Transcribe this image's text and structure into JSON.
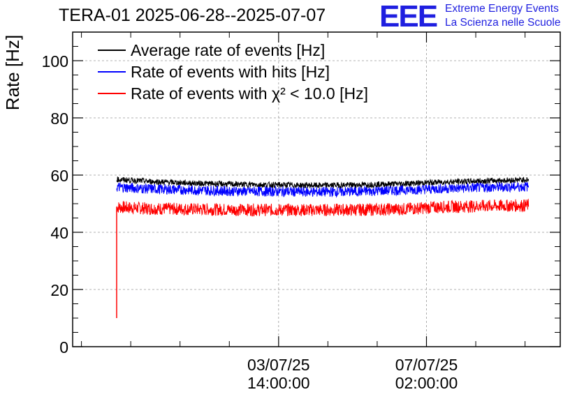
{
  "header": {
    "title": "TERA-01 2025-06-28--2025-07-07",
    "logo_text": "EEE",
    "org_line1": "Extreme Energy Events",
    "org_line2": "La Scienza nelle Scuole"
  },
  "chart_data": {
    "type": "line",
    "title": "TERA-01 2025-06-28--2025-07-07",
    "xlabel": "",
    "ylabel": "Rate [Hz]",
    "ylim": [
      0,
      110
    ],
    "yticks": [
      0,
      20,
      40,
      60,
      80,
      100
    ],
    "xlim": [
      "2025-06-28 17:00:00",
      "2025-07-10 06:00:00"
    ],
    "xticks": [
      {
        "date": "03/07/25",
        "time": "14:00:00",
        "value": "2025-07-03 14:00:00"
      },
      {
        "date": "07/07/25",
        "time": "02:00:00",
        "value": "2025-07-07 02:00:00"
      }
    ],
    "grid": true,
    "legend_position": "top-left",
    "x": [
      "2025-06-29 18:00",
      "2025-06-30 12:00",
      "2025-07-01 12:00",
      "2025-07-02 12:00",
      "2025-07-03 12:00",
      "2025-07-04 12:00",
      "2025-07-05 12:00",
      "2025-07-06 12:00",
      "2025-07-07 12:00",
      "2025-07-08 12:00",
      "2025-07-09 12:00"
    ],
    "series": [
      {
        "name": "Average rate of events [Hz]",
        "color": "#000000",
        "values": [
          58.5,
          57.8,
          57.2,
          56.8,
          56.6,
          56.4,
          56.6,
          57.0,
          57.6,
          58.0,
          58.4
        ]
      },
      {
        "name": "Rate of events with hits [Hz]",
        "color": "#0000ff",
        "values": [
          55.8,
          55.2,
          54.8,
          54.4,
          54.3,
          54.1,
          54.3,
          54.8,
          55.3,
          55.7,
          56.0
        ]
      },
      {
        "name": "Rate of events with χ² < 10.0 [Hz]",
        "color": "#ff0000",
        "values": [
          48.8,
          48.3,
          48.1,
          47.9,
          47.8,
          47.8,
          47.9,
          48.1,
          48.9,
          49.2,
          49.4
        ]
      }
    ],
    "annotations": [
      {
        "series": "Rate of events with χ² < 10.0 [Hz]",
        "x": "2025-06-29 18:00",
        "y": 10,
        "note": "initial spike at start of run"
      }
    ]
  }
}
